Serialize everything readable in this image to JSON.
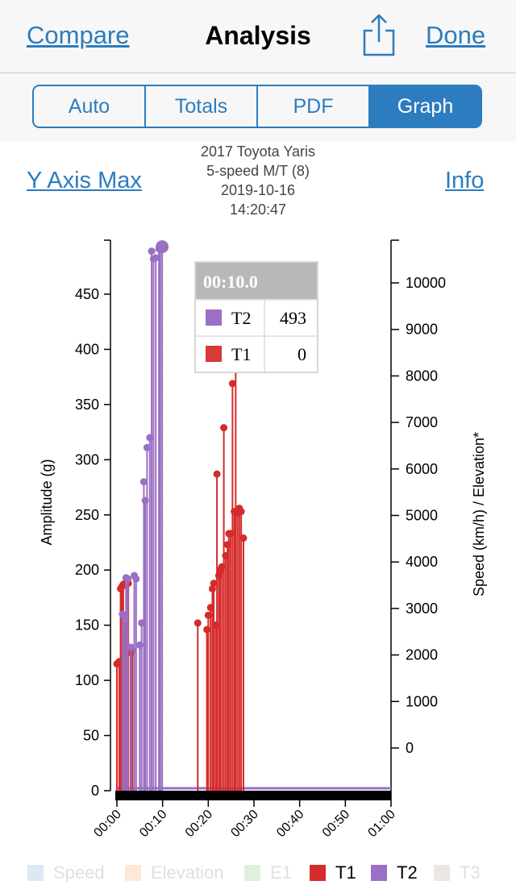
{
  "nav": {
    "compare": "Compare",
    "title": "Analysis",
    "done": "Done"
  },
  "tabs": [
    {
      "label": "Auto",
      "active": false
    },
    {
      "label": "Totals",
      "active": false
    },
    {
      "label": "PDF",
      "active": false
    },
    {
      "label": "Graph",
      "active": true
    }
  ],
  "y_axis_max": "Y Axis Max",
  "info": "Info",
  "vehicle": {
    "name": "2017 Toyota Yaris",
    "transmission": "5-speed M/T (8)",
    "date": "2019-10-16",
    "time": "14:20:47"
  },
  "tooltip": {
    "time": "00:10.0",
    "rows": [
      {
        "label": "T2",
        "value": "493",
        "color": "#9b6fc4"
      },
      {
        "label": "T1",
        "value": "0",
        "color": "#d63a3a"
      }
    ]
  },
  "legend": [
    {
      "label": "Speed",
      "color": "#dce9f5",
      "active": false
    },
    {
      "label": "Elevation",
      "color": "#fde9d6",
      "active": false
    },
    {
      "label": "E1",
      "color": "#dff0dc",
      "active": false
    },
    {
      "label": "T1",
      "color": "#d62b2b",
      "active": true
    },
    {
      "label": "T2",
      "color": "#9b6fc4",
      "active": true
    },
    {
      "label": "T3",
      "color": "#eee5e5",
      "active": false
    }
  ],
  "chart_data": {
    "type": "line",
    "ylabel": "Amplitude (g)",
    "y2label": "Speed (km/h) / Elevation*",
    "ylim": [
      0,
      500
    ],
    "yticks": [
      0,
      50,
      100,
      150,
      200,
      250,
      300,
      350,
      400,
      450
    ],
    "y2ticks": [
      "0",
      "1000",
      "2000",
      "3000",
      "4000",
      "5000",
      "6000",
      "7000",
      "8000",
      "9000",
      "10000"
    ],
    "xlim": [
      0,
      60
    ],
    "xticks": [
      "00:00",
      "00:10",
      "00:20",
      "00:30",
      "00:40",
      "00:50",
      "01:00"
    ],
    "series": [
      {
        "name": "T1",
        "color": "#d62b2b",
        "points": [
          [
            0.0,
            115
          ],
          [
            0.5,
            117
          ],
          [
            0.8,
            183
          ],
          [
            1.1,
            185
          ],
          [
            1.4,
            187
          ],
          [
            1.8,
            150
          ],
          [
            2.1,
            190
          ],
          [
            2.5,
            188
          ],
          [
            3.0,
            125
          ],
          [
            3.4,
            127
          ],
          [
            17.7,
            152
          ],
          [
            19.7,
            146
          ],
          [
            20.0,
            159
          ],
          [
            20.5,
            166
          ],
          [
            20.9,
            183
          ],
          [
            21.2,
            188
          ],
          [
            21.6,
            150
          ],
          [
            21.9,
            287
          ],
          [
            22.3,
            195
          ],
          [
            22.6,
            200
          ],
          [
            23.0,
            203
          ],
          [
            23.4,
            329
          ],
          [
            23.8,
            213
          ],
          [
            24.2,
            223
          ],
          [
            24.5,
            233
          ],
          [
            24.9,
            233
          ],
          [
            25.3,
            369
          ],
          [
            25.7,
            253
          ],
          [
            26.0,
            386
          ],
          [
            26.4,
            252
          ],
          [
            26.8,
            256
          ],
          [
            27.2,
            253
          ],
          [
            27.7,
            229
          ]
        ]
      },
      {
        "name": "T2",
        "color": "#9b6fc4",
        "points": [
          [
            1.2,
            160
          ],
          [
            1.6,
            158
          ],
          [
            2.0,
            193
          ],
          [
            2.4,
            192
          ],
          [
            3.1,
            130
          ],
          [
            3.8,
            195
          ],
          [
            4.2,
            192
          ],
          [
            5.0,
            132
          ],
          [
            5.4,
            152
          ],
          [
            5.9,
            280
          ],
          [
            6.2,
            263
          ],
          [
            6.6,
            311
          ],
          [
            7.2,
            320
          ],
          [
            7.6,
            489
          ],
          [
            8.0,
            482
          ],
          [
            8.5,
            483
          ],
          [
            9.2,
            491
          ],
          [
            9.5,
            492
          ],
          [
            9.9,
            493
          ]
        ]
      }
    ]
  }
}
